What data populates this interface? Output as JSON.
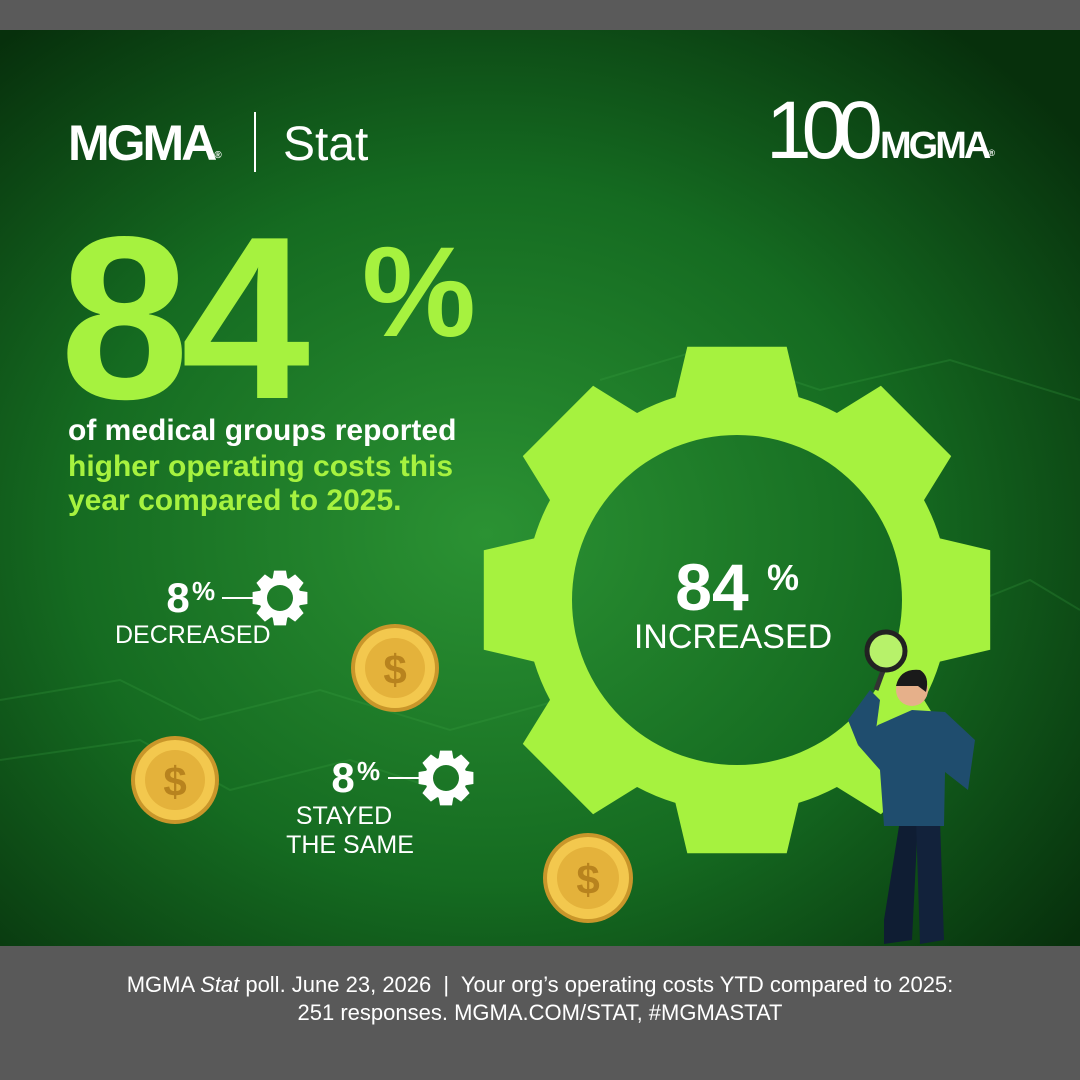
{
  "logo": {
    "name": "MGMA",
    "mark": "®",
    "product": "Stat"
  },
  "anniversary_logo": {
    "number": "100",
    "name": "MGMA",
    "mark": "®"
  },
  "headline": {
    "number": "84",
    "unit": "%"
  },
  "description": {
    "line1": "of medical groups reported",
    "highlight_line1": "higher operating costs this",
    "highlight_line2": "year compared to 2025."
  },
  "results": {
    "decreased": {
      "number": "8",
      "unit": "%",
      "label": "DECREASED"
    },
    "same": {
      "number": "8",
      "unit": "%",
      "label_line1": "STAYED",
      "label_line2": "THE SAME"
    },
    "increased": {
      "number": "84",
      "unit": "%",
      "label": "INCREASED"
    }
  },
  "coin_symbol": "$",
  "footer": {
    "source": "MGMA",
    "source_italic": "Stat",
    "poll_date": "poll. June 23, 2026",
    "separator": "|",
    "question": "Your org’s operating costs YTD compared to 2025:",
    "line2": "251 responses. MGMA.COM/STAT, #MGMASTAT"
  }
}
